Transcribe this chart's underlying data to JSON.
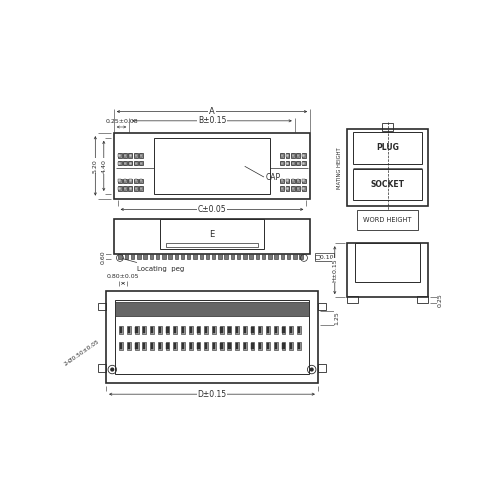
{
  "bg_color": "#ffffff",
  "line_color": "#2a2a2a",
  "fig_width": 5.0,
  "fig_height": 5.0,
  "labels": {
    "A": "A",
    "B": "B±0.15",
    "C": "C±0.05",
    "D": "D±0.15",
    "E": "E",
    "dim_025": "0.25±0.03",
    "dim_080": "0.80±0.05",
    "dim_060": "0.60",
    "dim_520": "5.20",
    "dim_440": "4.40",
    "dim_125": "1.25",
    "dim_H": "H±0.15",
    "dim_025r": "0.25",
    "dim_010": "□0.10",
    "locating": "Locating  peg",
    "cap": "CAP",
    "plug": "PLUG",
    "socket": "SOCKET",
    "mating": "MATING HEIGHT",
    "word_height": "WORD HEIGHT",
    "two_peg": "2-Ø0.50±0.05",
    "c_label": "C"
  }
}
